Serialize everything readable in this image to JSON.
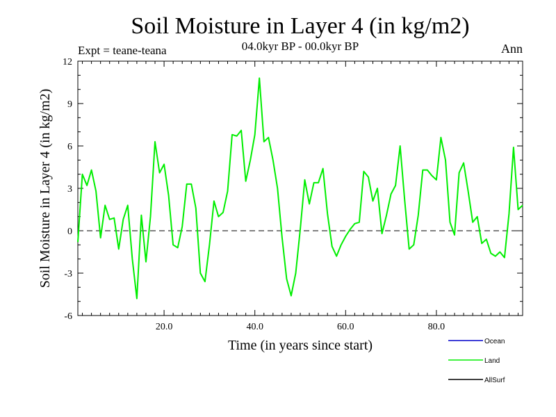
{
  "chart_data": {
    "type": "line",
    "title": "Soil Moisture in Layer 4 (in kg/m2)",
    "subtitle": "04.0kyr BP - 00.0kyr BP",
    "experiment": "Expt = teane-teana",
    "period": "Ann",
    "xlabel": "Time (in years since start)",
    "ylabel": "Soil Moisture in Layer 4 (in kg/m2)",
    "xlim": [
      1,
      99
    ],
    "ylim": [
      -6,
      12
    ],
    "yticks": [
      -6,
      -3,
      0,
      3,
      6,
      9,
      12
    ],
    "ytick_labels": [
      "-6",
      "-3",
      "0",
      "3",
      "6",
      "9",
      "12"
    ],
    "xticks": [
      20,
      40,
      60,
      80
    ],
    "xtick_labels": [
      "20.0",
      "40.0",
      "60.0",
      "80.0"
    ],
    "reference_line": 0,
    "legend": [
      {
        "name": "Ocean",
        "color": "#0000cc"
      },
      {
        "name": "Land",
        "color": "#00ee00"
      },
      {
        "name": "AllSurf",
        "color": "#000000"
      }
    ],
    "series": [
      {
        "name": "Land",
        "color": "#00ee00",
        "x": [
          1,
          2,
          3,
          4,
          5,
          6,
          7,
          8,
          9,
          10,
          11,
          12,
          13,
          14,
          15,
          16,
          17,
          18,
          19,
          20,
          21,
          22,
          23,
          24,
          25,
          26,
          27,
          28,
          29,
          30,
          31,
          32,
          33,
          34,
          35,
          36,
          37,
          38,
          39,
          40,
          41,
          42,
          43,
          44,
          45,
          46,
          47,
          48,
          49,
          50,
          51,
          52,
          53,
          54,
          55,
          56,
          57,
          58,
          59,
          60,
          61,
          62,
          63,
          64,
          65,
          66,
          67,
          68,
          69,
          70,
          71,
          72,
          73,
          74,
          75,
          76,
          77,
          78,
          79,
          80,
          81,
          82,
          83,
          84,
          85,
          86,
          87,
          88,
          89,
          90,
          91,
          92,
          93,
          94,
          95,
          96,
          97,
          98,
          99
        ],
        "values": [
          -0.8,
          4.0,
          3.2,
          4.3,
          2.8,
          -0.5,
          1.8,
          0.8,
          0.9,
          -1.3,
          0.8,
          1.8,
          -2.0,
          -4.8,
          1.1,
          -2.2,
          1.0,
          6.3,
          4.1,
          4.7,
          2.5,
          -1.0,
          -1.2,
          0.3,
          3.3,
          3.3,
          1.6,
          -3.0,
          -3.6,
          -1.0,
          2.1,
          1.0,
          1.3,
          2.8,
          6.8,
          6.7,
          7.1,
          3.5,
          5.0,
          6.8,
          10.8,
          6.3,
          6.6,
          5.0,
          3.0,
          -0.5,
          -3.4,
          -4.6,
          -3.0,
          0.1,
          3.6,
          1.9,
          3.4,
          3.4,
          4.4,
          1.2,
          -1.1,
          -1.8,
          -1.0,
          -0.4,
          0.1,
          0.5,
          0.6,
          4.2,
          3.8,
          2.1,
          3.0,
          -0.2,
          1.1,
          2.6,
          3.2,
          6.0,
          2.2,
          -1.3,
          -1.0,
          1.1,
          4.3,
          4.3,
          3.9,
          3.6,
          6.6,
          5.0,
          0.6,
          -0.3,
          4.1,
          4.8,
          2.8,
          0.6,
          1.0,
          -0.9,
          -0.6,
          -1.6,
          -1.8,
          -1.5,
          -1.9,
          1.2,
          5.9,
          1.5,
          1.8
        ]
      }
    ]
  }
}
